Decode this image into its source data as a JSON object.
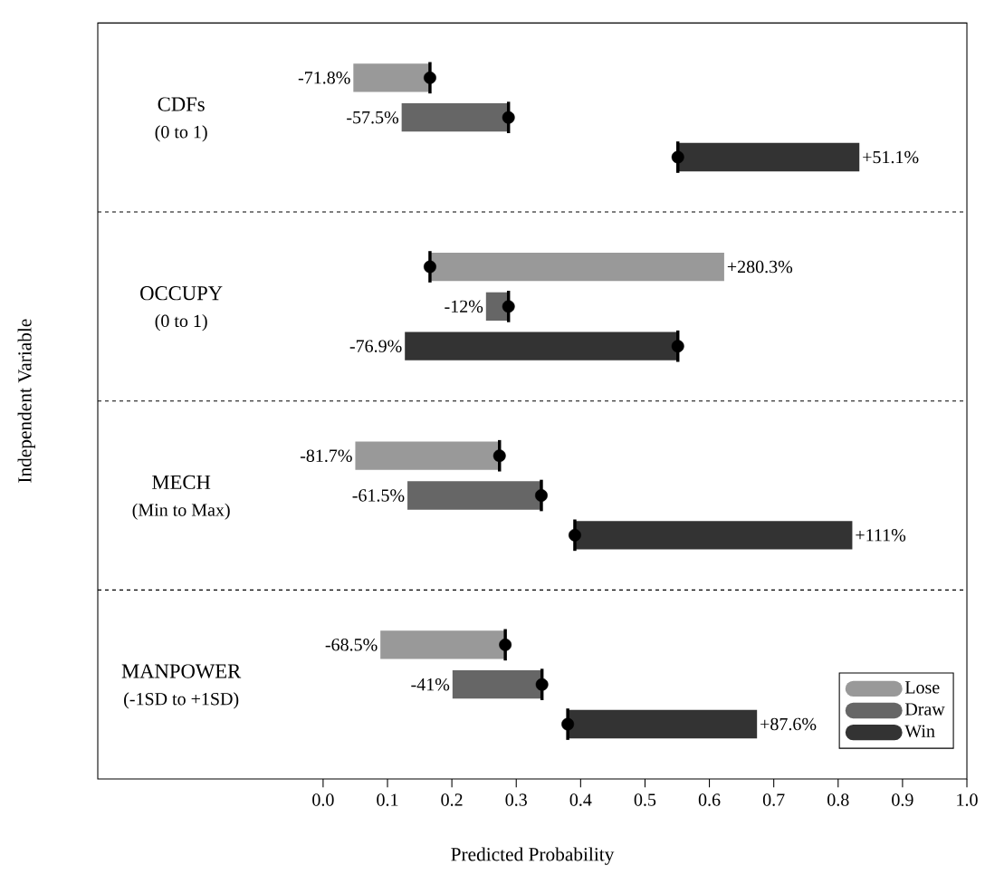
{
  "chart_data": {
    "type": "bar",
    "orientation": "horizontal",
    "xlabel": "Predicted Probability",
    "ylabel": "Independent Variable",
    "categories": [
      "CDFs",
      "OCCUPY",
      "MECH",
      "MANPOWER"
    ],
    "annotations": [
      "(0 to 1)",
      "(0 to 1)",
      "(Min to Max)",
      "(-1SD to +1SD)",
      "-71.8%",
      "-57.5%",
      "+51.1%",
      "+280.3%",
      "-12%",
      "-76.9%",
      "-81.7%",
      "-61.5%",
      "+111%",
      "-68.5%",
      "-41%",
      "+87.6%"
    ],
    "xlim": [
      -0.35,
      1.0
    ],
    "xticks": [
      {
        "value": 0,
        "label": "0.0"
      },
      {
        "value": 0.1,
        "label": "0.1"
      },
      {
        "value": 0.2,
        "label": "0.2"
      },
      {
        "value": 0.3,
        "label": "0.3"
      },
      {
        "value": 0.4,
        "label": "0.4"
      },
      {
        "value": 0.5,
        "label": "0.5"
      },
      {
        "value": 0.6,
        "label": "0.6"
      },
      {
        "value": 0.7,
        "label": "0.7"
      },
      {
        "value": 0.8,
        "label": "0.8"
      },
      {
        "value": 0.9,
        "label": "0.9"
      },
      {
        "value": 1,
        "label": "1.0"
      }
    ],
    "legend": "bottom right",
    "series": [
      {
        "name": "Lose",
        "color": "#999999",
        "base": [
          0.166,
          0.166,
          0.274,
          0.283
        ],
        "values": [
          -0.119,
          0.457,
          -0.224,
          -0.194
        ]
      },
      {
        "name": "Draw",
        "color": "#666666",
        "base": [
          0.288,
          0.288,
          0.339,
          0.34
        ],
        "values": [
          -0.166,
          -0.035,
          -0.208,
          -0.139
        ]
      },
      {
        "name": "Win",
        "color": "#333333",
        "base": [
          0.551,
          0.551,
          0.391,
          0.38
        ],
        "values": [
          0.282,
          -0.424,
          0.431,
          0.294
        ]
      },
      {
        "type": "scatter",
        "color": "#000000",
        "marker": "circle",
        "values": [
          0.166,
          0.166,
          0.274,
          0.283
        ]
      },
      {
        "type": "scatter",
        "color": "#000000",
        "marker": "circle",
        "values": [
          0.288,
          0.288,
          0.339,
          0.34
        ]
      },
      {
        "type": "scatter",
        "color": "#000000",
        "marker": "circle",
        "values": [
          0.551,
          0.551,
          0.391,
          0.38
        ]
      }
    ]
  }
}
